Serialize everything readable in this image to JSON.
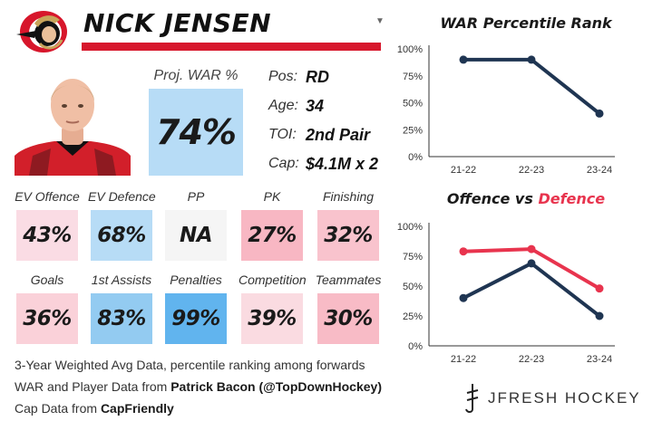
{
  "player": {
    "name": "NICK JENSEN",
    "team_logo_icon": "ottawa-senators-logo",
    "dropdown_icon": "caret-down-icon"
  },
  "proj_war": {
    "label": "Proj. WAR %",
    "value": "74%"
  },
  "info": [
    {
      "label": "Pos:",
      "value": "RD"
    },
    {
      "label": "Age:",
      "value": "34"
    },
    {
      "label": "TOI:",
      "value": "2nd Pair"
    },
    {
      "label": "Cap:",
      "value": "$4.1M x 2"
    }
  ],
  "stats": [
    {
      "label": "EV Offence",
      "value": "43%",
      "color": "#fadce4"
    },
    {
      "label": "EV Defence",
      "value": "68%",
      "color": "#b7dcf6"
    },
    {
      "label": "PP",
      "value": "NA",
      "color": "#f5f5f5"
    },
    {
      "label": "PK",
      "value": "27%",
      "color": "#f8b7c3"
    },
    {
      "label": "Finishing",
      "value": "32%",
      "color": "#f9c3cd"
    },
    {
      "label": "Goals",
      "value": "36%",
      "color": "#fad1d9"
    },
    {
      "label": "1st Assists",
      "value": "83%",
      "color": "#93cbf1"
    },
    {
      "label": "Penalties",
      "value": "99%",
      "color": "#61b4ee"
    },
    {
      "label": "Competition",
      "value": "39%",
      "color": "#fadbe1"
    },
    {
      "label": "Teammates",
      "value": "30%",
      "color": "#f8bbc6"
    }
  ],
  "footer": {
    "line1": "3-Year Weighted Avg Data, percentile ranking among forwards",
    "line2_prefix": "WAR and Player Data from ",
    "line2_bold": "Patrick Bacon (@TopDownHockey)",
    "line3_prefix": "Cap Data from ",
    "line3_bold": "CapFriendly"
  },
  "brand": {
    "text": "JFRESH HOCKEY",
    "icon": "jfresh-logo-icon"
  },
  "charts_text": {
    "war_title": "WAR Percentile Rank",
    "ovd_title_prefix": "Offence vs ",
    "ovd_title_suffix": "Defence"
  },
  "colors": {
    "navy": "#1f3552",
    "red": "#e8344e",
    "accent_red": "#d7162b"
  },
  "chart_data": [
    {
      "type": "line",
      "title": "WAR Percentile Rank",
      "categories": [
        "21-22",
        "22-23",
        "23-24"
      ],
      "series": [
        {
          "values": [
            90,
            90,
            40
          ],
          "color": "#1f3552"
        }
      ],
      "ylim": [
        0,
        100
      ],
      "yticks": [
        "0%",
        "25%",
        "50%",
        "75%",
        "100%"
      ],
      "grid": false
    },
    {
      "type": "line",
      "title": "Offence vs Defence",
      "categories": [
        "21-22",
        "22-23",
        "23-24"
      ],
      "series": [
        {
          "values": [
            40,
            69,
            25
          ],
          "color": "#1f3552"
        },
        {
          "values": [
            79,
            81,
            48
          ],
          "color": "#e8344e"
        }
      ],
      "ylim": [
        0,
        100
      ],
      "yticks": [
        "0%",
        "25%",
        "50%",
        "75%",
        "100%"
      ],
      "grid": false
    }
  ]
}
